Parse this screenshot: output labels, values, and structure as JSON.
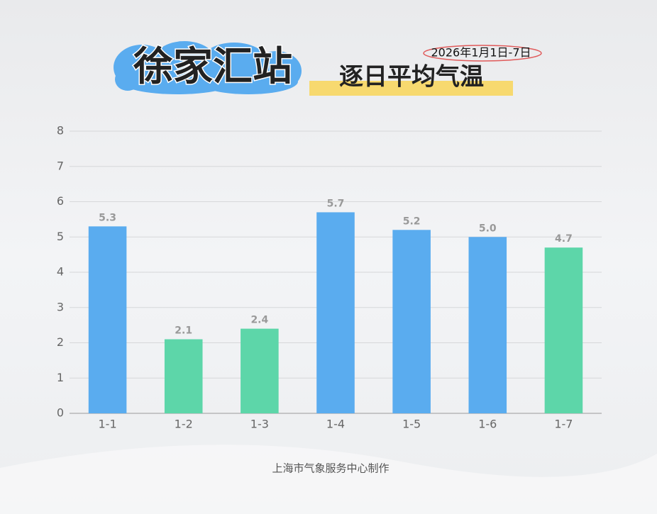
{
  "chart_data": {
    "type": "bar",
    "title": "徐家汇站",
    "subtitle": "逐日平均气温",
    "date_range": "2026年1月1日-7日",
    "source": "上海市气象服务中心制作",
    "categories": [
      "1-1",
      "1-2",
      "1-3",
      "1-4",
      "1-5",
      "1-6",
      "1-7"
    ],
    "values": [
      5.3,
      2.1,
      2.4,
      5.7,
      5.2,
      5.0,
      4.7
    ],
    "value_labels": [
      "5.3",
      "2.1",
      "2.4",
      "5.7",
      "5.2",
      "5.0",
      "4.7"
    ],
    "colors": [
      "#5aacef",
      "#5dd6a9",
      "#5dd6a9",
      "#5aacef",
      "#5aacef",
      "#5aacef",
      "#5dd6a9"
    ],
    "ylim": [
      0,
      8
    ],
    "yticks": [
      0,
      1,
      2,
      3,
      4,
      5,
      6,
      7,
      8
    ],
    "grid": true
  }
}
